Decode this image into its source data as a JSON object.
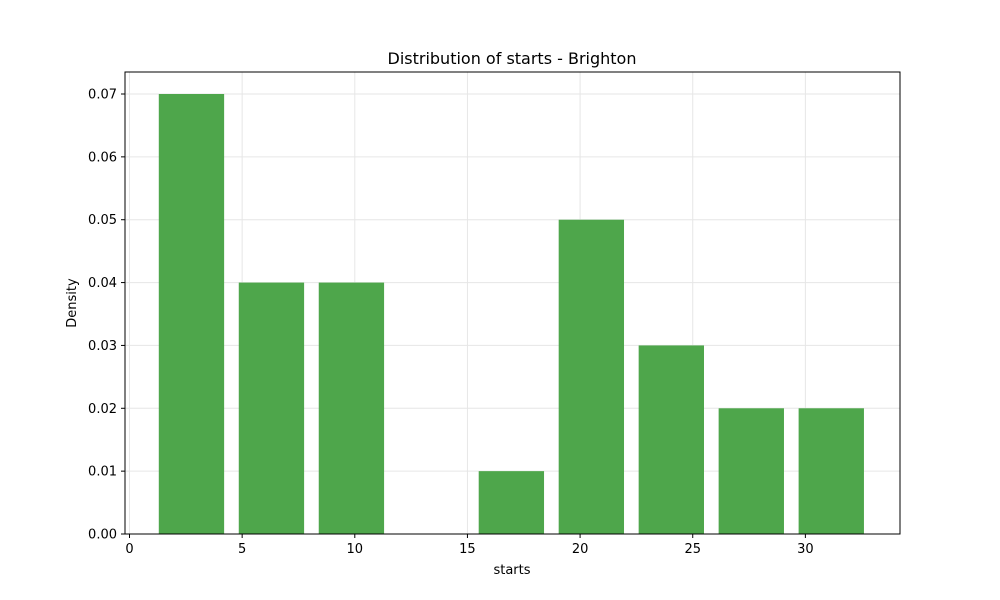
{
  "chart_data": {
    "type": "bar",
    "title": "Distribution of starts - Brighton",
    "xlabel": "starts",
    "ylabel": "Density",
    "xlim": [
      -0.2,
      34.2
    ],
    "ylim": [
      0,
      0.0735
    ],
    "xticks": [
      0,
      5,
      10,
      15,
      20,
      25,
      30
    ],
    "xtick_labels": [
      "0",
      "5",
      "10",
      "15",
      "20",
      "25",
      "30"
    ],
    "yticks": [
      0,
      0.01,
      0.02,
      0.03,
      0.04,
      0.05,
      0.06,
      0.07
    ],
    "ytick_labels": [
      "0.00",
      "0.01",
      "0.02",
      "0.03",
      "0.04",
      "0.05",
      "0.06",
      "0.07"
    ],
    "grid": true,
    "bars": [
      {
        "x_start": 1.3,
        "x_end": 4.2,
        "value": 0.07
      },
      {
        "x_start": 4.85,
        "x_end": 7.75,
        "value": 0.04
      },
      {
        "x_start": 8.4,
        "x_end": 11.3,
        "value": 0.04
      },
      {
        "x_start": 11.95,
        "x_end": 14.85,
        "value": 0.0
      },
      {
        "x_start": 15.5,
        "x_end": 18.4,
        "value": 0.01
      },
      {
        "x_start": 19.05,
        "x_end": 21.95,
        "value": 0.05
      },
      {
        "x_start": 22.6,
        "x_end": 25.5,
        "value": 0.03
      },
      {
        "x_start": 26.15,
        "x_end": 29.05,
        "value": 0.02
      },
      {
        "x_start": 29.7,
        "x_end": 32.6,
        "value": 0.02
      }
    ],
    "bar_color": "#4ea64b"
  }
}
